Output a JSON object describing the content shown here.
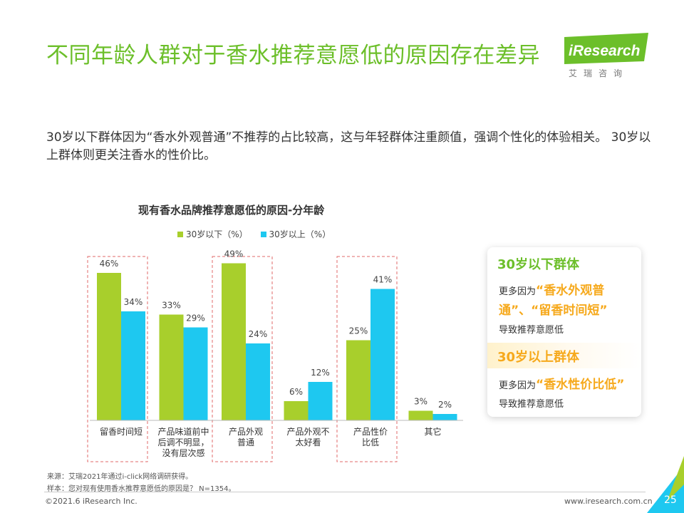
{
  "title": "不同年龄人群对于香水推荐意愿低的原因存在差异",
  "logo": {
    "text": "iResearch",
    "subtitle": "艾瑞咨询"
  },
  "summary": "30岁以下群体因为“香水外观普通”不推荐的占比较高，这与年轻群体注重颜值，强调个性化的体验相关。 30岁以上群体则更关注香水的性价比。",
  "colors": {
    "green": "#a8cf2c",
    "blue": "#1ec8f0",
    "title_green": "#6cbf2a",
    "orange": "#f6a91c",
    "highlight_border": "#e06a6a"
  },
  "chart_data": {
    "type": "bar",
    "title": "现有香水品牌推荐意愿低的原因-分年龄",
    "categories": [
      "留香时间短",
      "产品味道前中后调不明显，没有层次感",
      "产品外观普通",
      "产品外观不太好看",
      "产品性价比低",
      "其它"
    ],
    "category_lines": [
      [
        "留香时间短"
      ],
      [
        "产品味道前中",
        "后调不明显，",
        "没有层次感"
      ],
      [
        "产品外观",
        "普通"
      ],
      [
        "产品外观不",
        "太好看"
      ],
      [
        "产品性价",
        "比低"
      ],
      [
        "其它"
      ]
    ],
    "series": [
      {
        "name": "30岁以下（%）",
        "values": [
          46,
          33,
          49,
          6,
          25,
          3
        ],
        "labels": [
          "46%",
          "33%",
          "49%",
          "6%",
          "25%",
          "3%"
        ]
      },
      {
        "name": "30岁以上（%）",
        "values": [
          34,
          29,
          24,
          12,
          41,
          2
        ],
        "labels": [
          "34%",
          "29%",
          "24%",
          "12%",
          "41%",
          "2%"
        ]
      }
    ],
    "highlighted_categories": [
      0,
      2,
      4
    ],
    "ylim": [
      0,
      50
    ],
    "xlabel": "",
    "ylabel": "",
    "legend_position": "top"
  },
  "callout": {
    "under30": {
      "heading": "30岁以下群体",
      "prefix": "更多因为",
      "highlight": "“香水外观普通”、“留香时间短”",
      "suffix": "导致推荐意愿低"
    },
    "over30": {
      "heading": "30岁以上群体",
      "prefix": "更多因为",
      "highlight": "“香水性价比低”",
      "suffix": "导致推荐意愿低"
    }
  },
  "source": {
    "line1": "来源：艾瑞2021年通过i-click网络调研获得。",
    "line2": "样本：您对现有使用香水推荐意愿低的原因是？ N=1354。"
  },
  "footer": {
    "copyright": "©2021.6 iResearch Inc.",
    "website": "www.iresearch.com.cn",
    "page": "25"
  }
}
